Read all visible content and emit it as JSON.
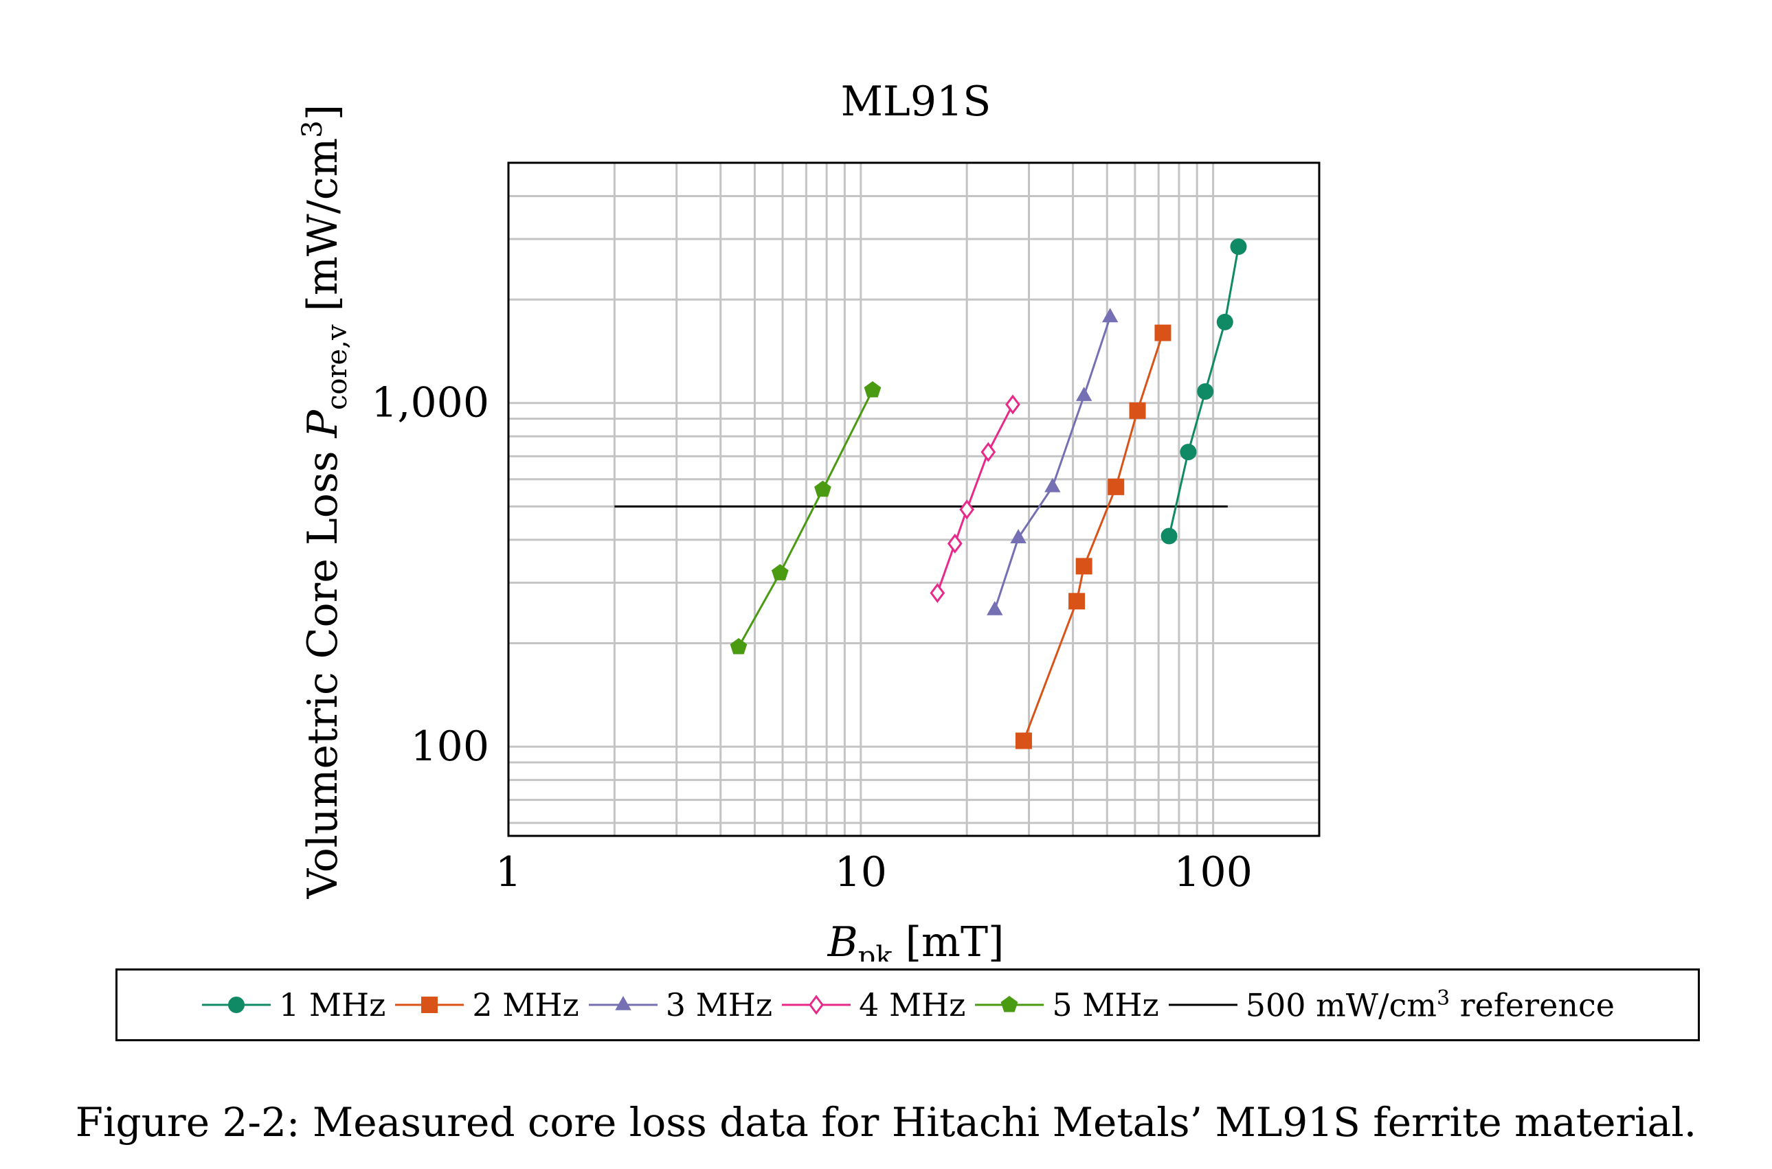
{
  "chart_data": {
    "type": "line",
    "title": "ML91S",
    "xlabel_main": "B",
    "xlabel_sub": "pk",
    "xlabel_unit": " [mT]",
    "ylabel_main": "Volumetric Core Loss ",
    "ylabel_var": "P",
    "ylabel_sub": "core,v",
    "ylabel_unit": " [mW/cm",
    "ylabel_sup": "3",
    "ylabel_end": "]",
    "x_scale": "log",
    "y_scale": "log",
    "xlim": [
      1,
      200
    ],
    "ylim": [
      55,
      5000
    ],
    "x_ticks": [
      {
        "value": 1,
        "label": "1"
      },
      {
        "value": 10,
        "label": "10"
      },
      {
        "value": 100,
        "label": "100"
      }
    ],
    "y_ticks": [
      {
        "value": 100,
        "label": "100"
      },
      {
        "value": 1000,
        "label": "1,000"
      }
    ],
    "grid": true,
    "series": [
      {
        "name": "1 MHz",
        "color": "#0f8a65",
        "marker": "circle",
        "x": [
          75,
          85,
          95,
          108,
          118
        ],
        "y": [
          410,
          720,
          1080,
          1720,
          2850
        ]
      },
      {
        "name": "2 MHz",
        "color": "#d95319",
        "marker": "square",
        "x": [
          29,
          41,
          43,
          53,
          61,
          72
        ],
        "y": [
          104,
          265,
          335,
          570,
          950,
          1600
        ]
      },
      {
        "name": "3 MHz",
        "color": "#7570b3",
        "marker": "triangle",
        "x": [
          24,
          28,
          35,
          43,
          51
        ],
        "y": [
          250,
          405,
          570,
          1050,
          1780
        ]
      },
      {
        "name": "4 MHz",
        "color": "#e7298a",
        "marker": "diamond-open",
        "x": [
          16.5,
          18.5,
          20,
          23,
          27
        ],
        "y": [
          280,
          390,
          490,
          720,
          990
        ]
      },
      {
        "name": "5 MHz",
        "color": "#4a9a12",
        "marker": "pentagon",
        "x": [
          4.5,
          5.9,
          7.8,
          10.8
        ],
        "y": [
          195,
          320,
          560,
          1090
        ]
      }
    ],
    "reference": {
      "name_pre": "500 mW/cm",
      "name_sup": "3",
      "name_post": " reference",
      "y": 500,
      "x": [
        2,
        110
      ],
      "color": "#000000"
    }
  },
  "caption": "Figure 2-2: Measured core loss data for Hitachi Metals’ ML91S ferrite material."
}
